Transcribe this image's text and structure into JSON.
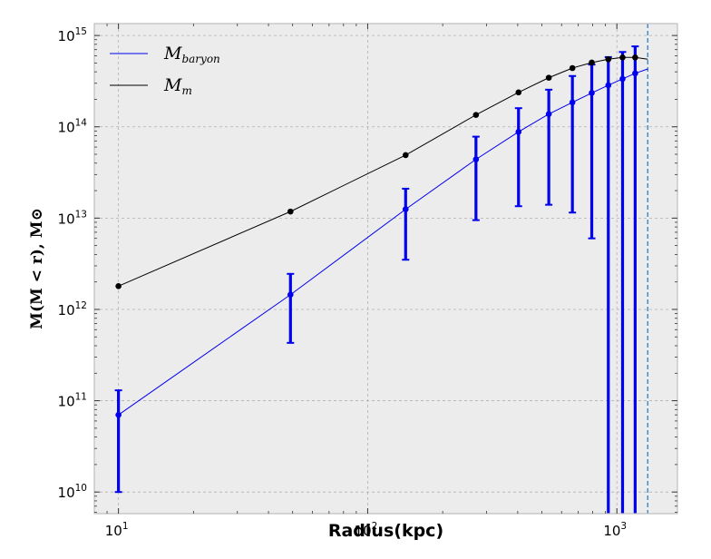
{
  "chart_data": {
    "type": "line",
    "xlabel": "Radius(kpc)",
    "ylabel": "M(M < r), M⊙",
    "xscale": "log",
    "yscale": "log",
    "xlim": [
      8,
      1750
    ],
    "ylim": [
      5800000000.0,
      1350000000000000.0
    ],
    "grid": true,
    "legend_position": "top-left",
    "x_ticks": [
      {
        "value": 10,
        "base": "10",
        "exp": "1"
      },
      {
        "value": 100,
        "base": "10",
        "exp": "2"
      },
      {
        "value": 1000,
        "base": "10",
        "exp": "3"
      }
    ],
    "y_ticks": [
      {
        "value": 10000000000.0,
        "base": "10",
        "exp": "10"
      },
      {
        "value": 100000000000.0,
        "base": "10",
        "exp": "11"
      },
      {
        "value": 1000000000000.0,
        "base": "10",
        "exp": "12"
      },
      {
        "value": 10000000000000.0,
        "base": "10",
        "exp": "13"
      },
      {
        "value": 100000000000000.0,
        "base": "10",
        "exp": "14"
      },
      {
        "value": 1000000000000000.0,
        "base": "10",
        "exp": "15"
      }
    ],
    "vline_x": 1330,
    "series": [
      {
        "name": "M",
        "name_sub": "baryon",
        "color": "#0000ee",
        "points": [
          {
            "x": 10,
            "y": 70000000000.0,
            "lo": 10000000000.0,
            "hi": 130000000000.0
          },
          {
            "x": 49,
            "y": 1450000000000.0,
            "lo": 430000000000.0,
            "hi": 2450000000000.0
          },
          {
            "x": 142,
            "y": 12500000000000.0,
            "lo": 3500000000000.0,
            "hi": 21000000000000.0
          },
          {
            "x": 272,
            "y": 44000000000000.0,
            "lo": 9500000000000.0,
            "hi": 78000000000000.0
          },
          {
            "x": 403,
            "y": 88000000000000.0,
            "lo": 13500000000000.0,
            "hi": 160000000000000.0
          },
          {
            "x": 533,
            "y": 138000000000000.0,
            "lo": 14000000000000.0,
            "hi": 255000000000000.0
          },
          {
            "x": 663,
            "y": 185000000000000.0,
            "lo": 11500000000000.0,
            "hi": 360000000000000.0
          },
          {
            "x": 793,
            "y": 235000000000000.0,
            "lo": 6000000000000.0,
            "hi": 480000000000000.0
          },
          {
            "x": 924,
            "y": 285000000000000.0,
            "lo": 1000000000.0,
            "hi": 580000000000000.0
          },
          {
            "x": 1054,
            "y": 335000000000000.0,
            "lo": 1000000000.0,
            "hi": 660000000000000.0
          },
          {
            "x": 1184,
            "y": 385000000000000.0,
            "lo": 1000000000.0,
            "hi": 760000000000000.0
          }
        ],
        "line_end": {
          "x": 1330,
          "y": 430000000000000.0
        }
      },
      {
        "name": "M",
        "name_sub": "m",
        "color": "#000000",
        "points": [
          {
            "x": 10,
            "y": 1800000000000.0
          },
          {
            "x": 49,
            "y": 11800000000000.0
          },
          {
            "x": 142,
            "y": 49000000000000.0
          },
          {
            "x": 272,
            "y": 135000000000000.0
          },
          {
            "x": 403,
            "y": 238000000000000.0
          },
          {
            "x": 533,
            "y": 345000000000000.0
          },
          {
            "x": 663,
            "y": 440000000000000.0
          },
          {
            "x": 793,
            "y": 505000000000000.0
          },
          {
            "x": 924,
            "y": 550000000000000.0
          },
          {
            "x": 1054,
            "y": 575000000000000.0
          },
          {
            "x": 1184,
            "y": 575000000000000.0
          }
        ],
        "line_end": {
          "x": 1330,
          "y": 550000000000000.0
        }
      }
    ]
  }
}
